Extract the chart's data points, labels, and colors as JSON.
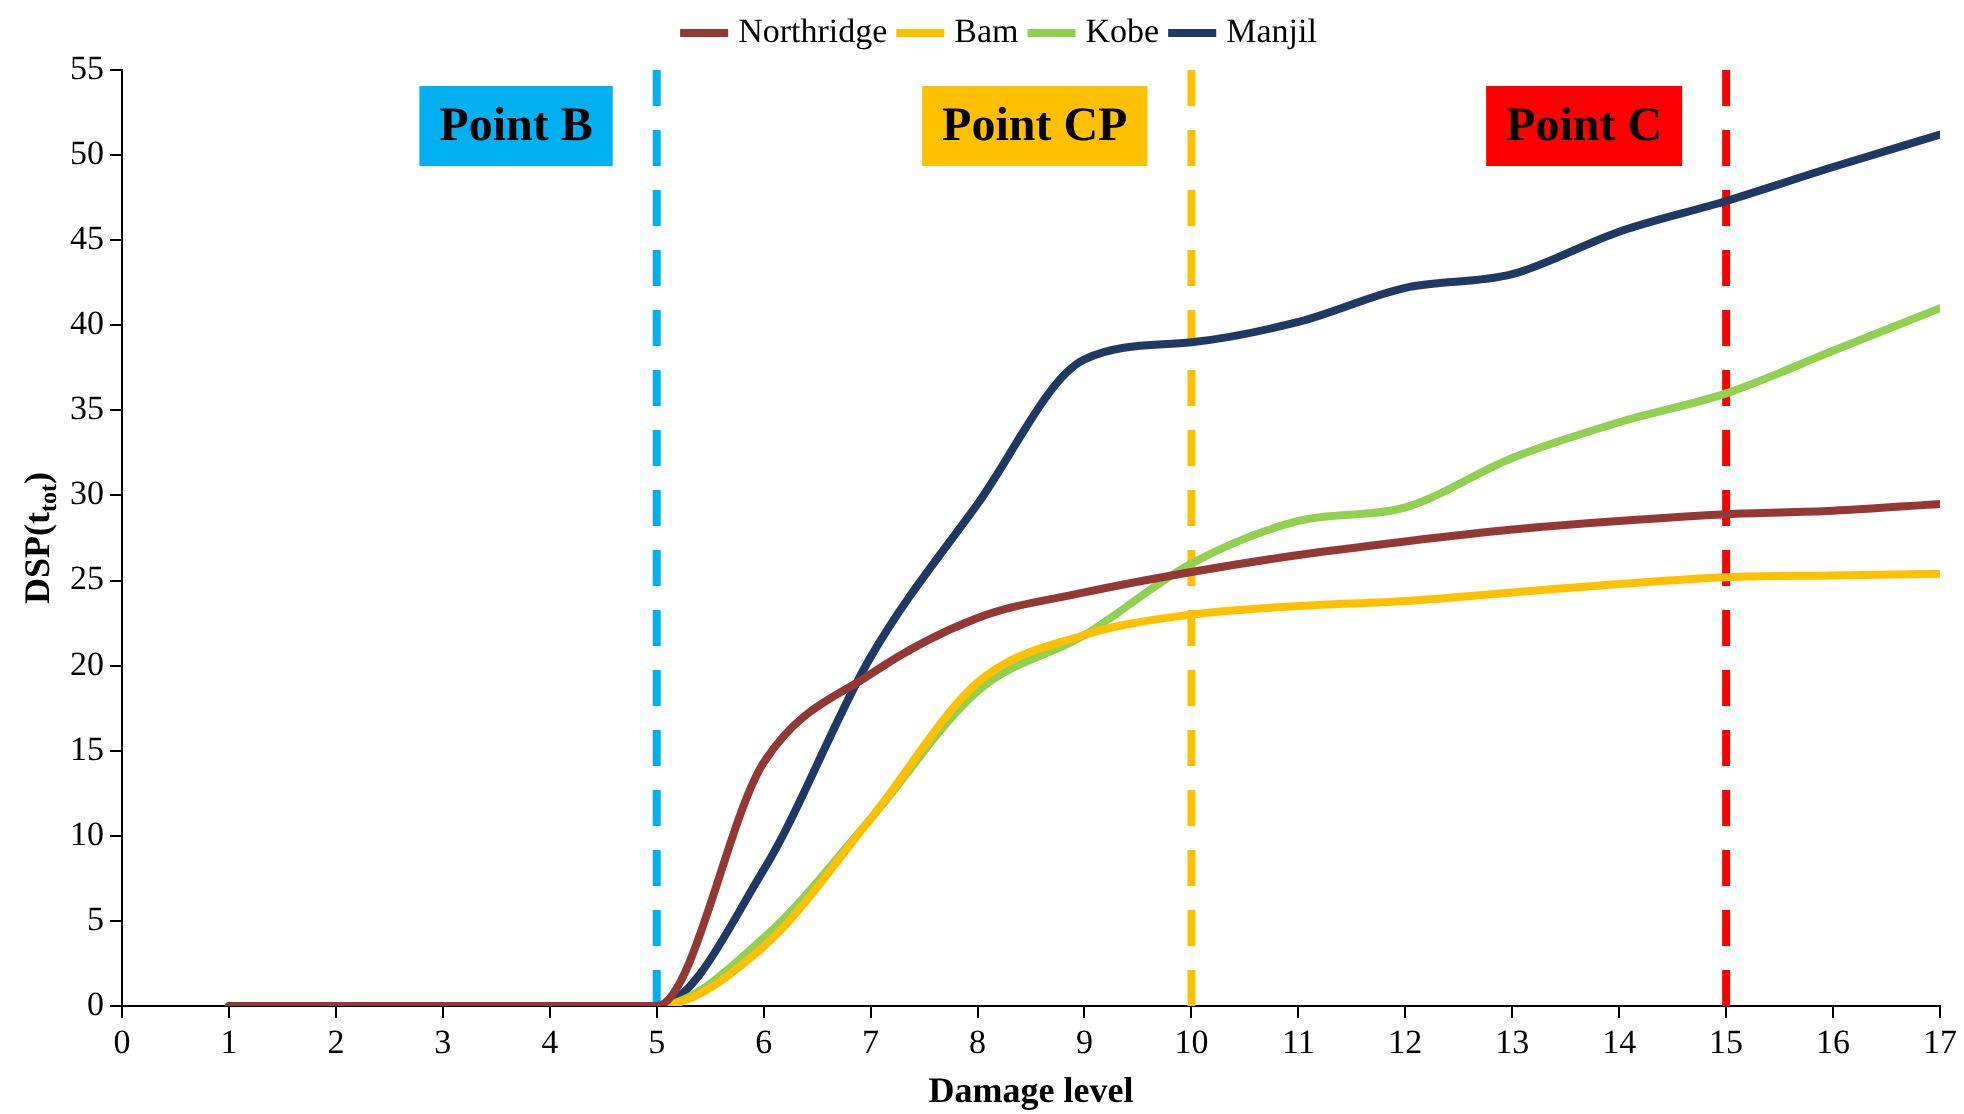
{
  "chart_data": {
    "type": "line",
    "xlabel": "Damage level",
    "ylabel": "DSP(t$_{tot}$)",
    "x": [
      1,
      2,
      3,
      4,
      5,
      6,
      7,
      8,
      9,
      10,
      11,
      12,
      13,
      14,
      15,
      16,
      17
    ],
    "series": [
      {
        "name": "Northridge",
        "color": "#953735",
        "values": [
          0,
          0,
          0,
          0,
          0,
          14.3,
          19.5,
          22.8,
          24.3,
          25.5,
          26.5,
          27.3,
          28,
          28.5,
          28.9,
          29.1,
          29.5
        ]
      },
      {
        "name": "Bam",
        "color": "#ffc000",
        "values": [
          null,
          null,
          null,
          0,
          0,
          3.5,
          11,
          19,
          21.8,
          23,
          23.5,
          23.8,
          24.3,
          24.8,
          25.2,
          25.3,
          25.4
        ]
      },
      {
        "name": "Kobe",
        "color": "#92d050",
        "values": [
          null,
          null,
          null,
          0,
          0,
          4,
          11,
          18.5,
          21.8,
          26,
          28.5,
          29.3,
          32.2,
          34.3,
          36,
          38.5,
          41
        ]
      },
      {
        "name": "Manjil",
        "color": "#1f3864",
        "values": [
          null,
          null,
          null,
          0,
          0,
          8,
          20.5,
          29.5,
          38,
          39,
          40.2,
          42.2,
          43,
          45.5,
          47.3,
          49.3,
          51.2
        ]
      }
    ],
    "xlim": [
      0,
      17
    ],
    "xticks": [
      0,
      1,
      2,
      3,
      4,
      5,
      6,
      7,
      8,
      9,
      10,
      11,
      12,
      13,
      14,
      15,
      16,
      17
    ],
    "ylim": [
      0,
      55
    ],
    "yticks": [
      0,
      5,
      10,
      15,
      20,
      25,
      30,
      35,
      40,
      45,
      50,
      55
    ],
    "ref_lines": [
      {
        "axis": "x",
        "value": 5,
        "label": "Point B",
        "color": "#00b0f0",
        "line_style": "dashed"
      },
      {
        "axis": "x",
        "value": 10,
        "label": "Point CP",
        "color": "#ffc000",
        "line_style": "dashed"
      },
      {
        "axis": "x",
        "value": 15,
        "label": "Point C",
        "color": "#ff0000",
        "line_style": "dashed"
      }
    ],
    "grid": false,
    "legend": "top",
    "marker": "none",
    "line_style": "solid"
  }
}
